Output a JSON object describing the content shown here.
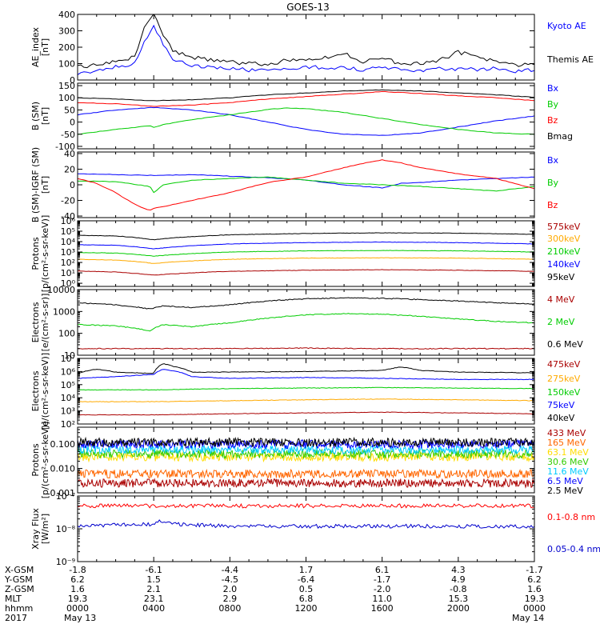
{
  "title": "GOES-13",
  "time_axis": {
    "hours": [
      0,
      4,
      8,
      12,
      16,
      20,
      24
    ],
    "rows": [
      {
        "label": "X-GSM",
        "values": [
          "-1.8",
          "-6.1",
          "-4.4",
          "1.7",
          "6.1",
          "4.3",
          "-1.7"
        ]
      },
      {
        "label": "Y-GSM",
        "values": [
          "6.2",
          "1.5",
          "-4.5",
          "-6.4",
          "-1.7",
          "4.9",
          "6.2"
        ]
      },
      {
        "label": "Z-GSM",
        "values": [
          "1.6",
          "2.1",
          "2.0",
          "0.5",
          "-2.0",
          "-0.8",
          "1.6"
        ]
      },
      {
        "label": "MLT",
        "values": [
          "19.3",
          "23.1",
          "2.9",
          "6.8",
          "11.0",
          "15.3",
          "19.3"
        ]
      },
      {
        "label": "hhmm",
        "values": [
          "0000",
          "0400",
          "0800",
          "1200",
          "1600",
          "2000",
          "0000"
        ]
      }
    ],
    "year_label": "2017",
    "date_start": "May 13",
    "date_end": "May 14"
  },
  "chart_data": [
    {
      "type": "line",
      "ylabel": "AE_index [nT]",
      "scale": "linear",
      "ylim": [
        0,
        400
      ],
      "yticks": [
        0,
        100,
        200,
        300,
        400
      ],
      "ytick_labels": [
        "0",
        "100",
        "200",
        "300",
        "400"
      ],
      "series": [
        {
          "name": "Kyoto AE",
          "color": "#0000ff",
          "x": [
            0,
            1,
            2,
            3,
            3.5,
            4,
            4.5,
            5,
            6,
            7,
            8,
            9,
            10,
            11,
            12,
            13,
            14,
            15,
            16,
            17,
            18,
            19,
            20,
            21,
            22,
            23,
            24
          ],
          "y": [
            40,
            50,
            80,
            100,
            230,
            330,
            220,
            130,
            90,
            80,
            70,
            60,
            55,
            70,
            80,
            75,
            80,
            60,
            85,
            60,
            60,
            70,
            65,
            65,
            70,
            55,
            60
          ]
        },
        {
          "name": "Themis AE",
          "color": "#000000",
          "x": [
            0,
            1,
            2,
            3,
            3.5,
            4,
            4.5,
            5,
            6,
            7,
            8,
            9,
            10,
            11,
            12,
            13,
            14,
            15,
            16,
            17,
            18,
            19,
            20,
            21,
            22,
            23,
            24
          ],
          "y": [
            80,
            90,
            110,
            140,
            320,
            400,
            280,
            180,
            140,
            120,
            110,
            100,
            95,
            120,
            130,
            140,
            160,
            110,
            130,
            100,
            100,
            120,
            170,
            140,
            110,
            90,
            100
          ]
        }
      ]
    },
    {
      "type": "line",
      "ylabel": "B (SM) [nT]",
      "scale": "linear",
      "ylim": [
        -110,
        160
      ],
      "yticks": [
        -100,
        -50,
        0,
        50,
        100,
        150
      ],
      "ytick_labels": [
        "-100",
        "-50",
        "0",
        "50",
        "100",
        "150"
      ],
      "series": [
        {
          "name": "Bx",
          "color": "#0000ff",
          "x": [
            0,
            2,
            4,
            6,
            8,
            10,
            12,
            14,
            16,
            18,
            20,
            22,
            24
          ],
          "y": [
            30,
            50,
            60,
            50,
            30,
            0,
            -30,
            -50,
            -55,
            -45,
            -20,
            5,
            25
          ]
        },
        {
          "name": "By",
          "color": "#00cc00",
          "x": [
            0,
            2,
            3.8,
            4,
            4.5,
            6,
            8,
            10,
            11,
            12,
            14,
            16,
            18,
            20,
            22,
            24
          ],
          "y": [
            -50,
            -30,
            -15,
            -22,
            -10,
            10,
            30,
            52,
            58,
            55,
            40,
            15,
            -10,
            -30,
            -45,
            -50
          ]
        },
        {
          "name": "Bz",
          "color": "#ff0000",
          "x": [
            0,
            2,
            4,
            6,
            8,
            10,
            12,
            14,
            16,
            18,
            20,
            22,
            24
          ],
          "y": [
            80,
            75,
            65,
            70,
            80,
            95,
            105,
            115,
            125,
            118,
            108,
            100,
            88
          ]
        },
        {
          "name": "Bmag",
          "color": "#000000",
          "x": [
            0,
            2,
            4,
            6,
            8,
            10,
            12,
            14,
            16,
            18,
            20,
            22,
            24
          ],
          "y": [
            100,
            95,
            88,
            92,
            100,
            112,
            120,
            128,
            132,
            128,
            120,
            112,
            102
          ]
        }
      ]
    },
    {
      "type": "line",
      "ylabel": "B (SM)-IGRF (SM) [nT]",
      "scale": "linear",
      "ylim": [
        -42,
        42
      ],
      "yticks": [
        -40,
        -20,
        0,
        20,
        40
      ],
      "ytick_labels": [
        "-40",
        "-20",
        "0",
        "20",
        "40"
      ],
      "series": [
        {
          "name": "Bx",
          "color": "#0000ff",
          "x": [
            0,
            2,
            4,
            6,
            8,
            10,
            12,
            14,
            16,
            17,
            18,
            20,
            22,
            24
          ],
          "y": [
            14,
            13,
            12,
            13,
            11,
            9,
            6,
            0,
            -4,
            2,
            3,
            6,
            8,
            10
          ]
        },
        {
          "name": "By",
          "color": "#00cc00",
          "x": [
            0,
            2,
            3.8,
            4,
            4.5,
            6,
            8,
            10,
            12,
            14,
            16,
            18,
            20,
            22,
            24
          ],
          "y": [
            5,
            4,
            -2,
            -10,
            0,
            6,
            8,
            10,
            6,
            2,
            0,
            -2,
            -5,
            -8,
            -2
          ]
        },
        {
          "name": "Bz",
          "color": "#ff0000",
          "x": [
            0,
            1,
            2,
            3,
            3.8,
            4,
            4.5,
            6,
            8,
            10,
            12,
            14,
            15.5,
            16,
            17,
            18,
            20,
            22,
            24
          ],
          "y": [
            8,
            2,
            -10,
            -25,
            -33,
            -30,
            -28,
            -20,
            -10,
            3,
            10,
            22,
            30,
            32,
            28,
            22,
            14,
            8,
            -5
          ]
        }
      ]
    },
    {
      "type": "line",
      "ylabel": "Protons [p/(cm²-s-sr-keV)]",
      "scale": "log",
      "ylim": [
        0.5,
        1000000
      ],
      "yticks": [
        1,
        10,
        100,
        1000,
        10000,
        100000,
        1000000
      ],
      "ytick_labels": [
        "10⁰",
        "10¹",
        "10²",
        "10³",
        "10⁴",
        "10⁵",
        "10⁶"
      ],
      "series": [
        {
          "name": "575keV",
          "color": "#aa0000",
          "x": [
            0,
            2,
            4,
            6,
            8,
            12,
            16,
            20,
            24
          ],
          "y": [
            15,
            12,
            6,
            10,
            14,
            18,
            20,
            18,
            14
          ]
        },
        {
          "name": "300keV",
          "color": "#ffaa00",
          "x": [
            0,
            2,
            4,
            6,
            8,
            12,
            16,
            20,
            24
          ],
          "y": [
            200,
            170,
            80,
            140,
            200,
            260,
            280,
            260,
            200
          ]
        },
        {
          "name": "210keV",
          "color": "#00cc00",
          "x": [
            0,
            2,
            4,
            6,
            8,
            12,
            16,
            20,
            24
          ],
          "y": [
            900,
            800,
            400,
            700,
            1000,
            1300,
            1400,
            1300,
            1000
          ]
        },
        {
          "name": "140keV",
          "color": "#0000ff",
          "x": [
            0,
            2,
            4,
            6,
            8,
            12,
            16,
            20,
            24
          ],
          "y": [
            5000,
            4500,
            2000,
            4000,
            6000,
            8000,
            9000,
            8000,
            6000
          ]
        },
        {
          "name": "95keV",
          "color": "#000000",
          "x": [
            0,
            2,
            4,
            6,
            8,
            12,
            16,
            20,
            24
          ],
          "y": [
            40000,
            35000,
            15000,
            30000,
            45000,
            60000,
            70000,
            65000,
            50000
          ]
        }
      ]
    },
    {
      "type": "line",
      "ylabel": "Electrons [e/(cm²-s-sr)]",
      "scale": "log",
      "ylim": [
        10,
        10000
      ],
      "yticks": [
        10,
        100,
        1000,
        10000
      ],
      "ytick_labels": [
        "10",
        "100",
        "1000",
        "10000"
      ],
      "series": [
        {
          "name": "4 MeV",
          "color": "#aa0000",
          "x": [
            0,
            4,
            8,
            12,
            16,
            20,
            24
          ],
          "y": [
            20,
            20,
            20,
            21,
            20,
            20,
            20
          ]
        },
        {
          "name": "2 MeV",
          "color": "#00cc00",
          "x": [
            0,
            2,
            3.8,
            4.5,
            6,
            8,
            10,
            12,
            14,
            16,
            18,
            20,
            22,
            24
          ],
          "y": [
            250,
            220,
            130,
            250,
            200,
            300,
            500,
            700,
            800,
            750,
            600,
            450,
            350,
            300
          ]
        },
        {
          "name": "0.6 MeV",
          "color": "#000000",
          "x": [
            0,
            2,
            3.8,
            4.5,
            6,
            8,
            10,
            12,
            14,
            16,
            18,
            20,
            22,
            24
          ],
          "y": [
            2500,
            2000,
            1300,
            1800,
            1500,
            2000,
            3000,
            3800,
            4200,
            4000,
            3500,
            3000,
            2500,
            2200
          ]
        }
      ]
    },
    {
      "type": "line",
      "ylabel": "Electrons [e/(cm²-s-sr-keV)]",
      "scale": "log",
      "ylim": [
        100,
        10000000
      ],
      "yticks": [
        100,
        1000,
        10000,
        100000,
        1000000,
        10000000
      ],
      "ytick_labels": [
        "10²",
        "10³",
        "10⁴",
        "10⁵",
        "10⁶",
        "10⁷"
      ],
      "series": [
        {
          "name": "475keV",
          "color": "#aa0000",
          "x": [
            0,
            4,
            8,
            12,
            16,
            20,
            24
          ],
          "y": [
            500,
            500,
            600,
            700,
            800,
            700,
            600
          ]
        },
        {
          "name": "275keV",
          "color": "#ffaa00",
          "x": [
            0,
            4,
            8,
            12,
            16,
            20,
            24
          ],
          "y": [
            5000,
            5000,
            6000,
            7000,
            8000,
            7000,
            6000
          ]
        },
        {
          "name": "150keV",
          "color": "#00cc00",
          "x": [
            0,
            4,
            8,
            12,
            16,
            20,
            24
          ],
          "y": [
            40000,
            40000,
            50000,
            55000,
            60000,
            55000,
            50000
          ]
        },
        {
          "name": "75keV",
          "color": "#0000ff",
          "x": [
            0,
            2,
            4,
            4.5,
            6,
            8,
            12,
            16,
            20,
            24
          ],
          "y": [
            300000,
            400000,
            600000,
            1500000,
            400000,
            300000,
            350000,
            300000,
            250000,
            250000
          ]
        },
        {
          "name": "40keV",
          "color": "#000000",
          "x": [
            0,
            1,
            2,
            4,
            4.5,
            5,
            6,
            8,
            12,
            16,
            17,
            18,
            20,
            24
          ],
          "y": [
            700000,
            1500000,
            900000,
            700000,
            4000000,
            2500000,
            900000,
            900000,
            1000000,
            1200000,
            2200000,
            1200000,
            900000,
            800000
          ]
        }
      ]
    },
    {
      "type": "line",
      "ylabel": "Protons [p/(cm²-s-sr-keV)]",
      "scale": "log",
      "ylim": [
        0.001,
        0.5
      ],
      "yticks": [
        0.001,
        0.01,
        0.1
      ],
      "ytick_labels": [
        "0.001",
        "0.010",
        "0.100"
      ],
      "series": [
        {
          "name": "433 MeV",
          "color": "#aa0000",
          "x": [
            0,
            12,
            24
          ],
          "y": [
            0.0025,
            0.0025,
            0.0025
          ]
        },
        {
          "name": "165 MeV",
          "color": "#ff6600",
          "x": [
            0,
            12,
            24
          ],
          "y": [
            0.006,
            0.006,
            0.006
          ]
        },
        {
          "name": "63.1 MeV",
          "color": "#ffdd00",
          "x": [
            0,
            12,
            24
          ],
          "y": [
            0.03,
            0.03,
            0.03
          ]
        },
        {
          "name": "30.6 MeV",
          "color": "#33cc00",
          "x": [
            0,
            12,
            24
          ],
          "y": [
            0.04,
            0.04,
            0.04
          ]
        },
        {
          "name": "11.6 MeV",
          "color": "#00ccff",
          "x": [
            0,
            12,
            24
          ],
          "y": [
            0.06,
            0.06,
            0.06
          ]
        },
        {
          "name": "6.5 MeV",
          "color": "#0000ff",
          "x": [
            0,
            12,
            24
          ],
          "y": [
            0.1,
            0.1,
            0.1
          ]
        },
        {
          "name": "2.5 MeV",
          "color": "#000000",
          "x": [
            0,
            12,
            24
          ],
          "y": [
            0.12,
            0.12,
            0.12
          ]
        }
      ]
    },
    {
      "type": "line",
      "ylabel": "Xray Flux [W/m²]",
      "scale": "log",
      "ylim": [
        1e-09,
        1e-07
      ],
      "yticks": [
        1e-09,
        1e-08,
        1e-07
      ],
      "ytick_labels": [
        "10⁻⁹",
        "10⁻⁸",
        "10⁻⁷"
      ],
      "series": [
        {
          "name": "0.1-0.8 nm",
          "color": "#ff0000",
          "x": [
            0,
            4,
            8,
            12,
            16,
            20,
            24
          ],
          "y": [
            5e-08,
            5e-08,
            5e-08,
            5e-08,
            5e-08,
            5e-08,
            5e-08
          ]
        },
        {
          "name": "0.05-0.4 nm",
          "color": "#0000cc",
          "x": [
            0,
            4,
            4.5,
            5,
            8,
            12,
            16,
            20,
            24
          ],
          "y": [
            1.2e-08,
            1.4e-08,
            1.8e-08,
            1.4e-08,
            1.2e-08,
            1.2e-08,
            1.2e-08,
            1.2e-08,
            1.2e-08
          ]
        }
      ]
    }
  ]
}
